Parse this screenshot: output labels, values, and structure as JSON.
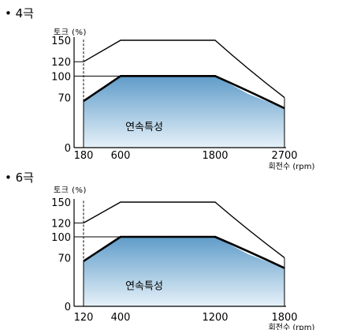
{
  "chart_data": [
    {
      "type": "area",
      "title": "• 4극",
      "ylabel": "토크 (%)",
      "xlabel": "회전수 (rpm)",
      "yticks": [
        0,
        70,
        100,
        120,
        150
      ],
      "xticks": [
        180,
        600,
        1800,
        2700
      ],
      "xlim": [
        0,
        2700
      ],
      "ylim": [
        0,
        150
      ],
      "region_label": "연속특성",
      "series": [
        {
          "name": "",
          "role": "peak",
          "points": [
            [
              180,
              120
            ],
            [
              600,
              150
            ],
            [
              1800,
              150
            ],
            [
              2250,
              100
            ],
            [
              2700,
              70
            ]
          ]
        },
        {
          "name": "",
          "role": "continuous",
          "points": [
            [
              180,
              65
            ],
            [
              600,
              100
            ],
            [
              1800,
              100
            ],
            [
              2250,
              75
            ],
            [
              2700,
              55
            ]
          ]
        }
      ]
    },
    {
      "type": "area",
      "title": "• 6극",
      "ylabel": "토크 (%)",
      "xlabel": "회전수 (rpm)",
      "yticks": [
        0,
        70,
        100,
        120,
        150
      ],
      "xticks": [
        120,
        400,
        1200,
        1800
      ],
      "xlim": [
        0,
        1800
      ],
      "ylim": [
        0,
        150
      ],
      "region_label": "연속특성",
      "series": [
        {
          "name": "",
          "role": "peak",
          "points": [
            [
              120,
              120
            ],
            [
              400,
              150
            ],
            [
              1200,
              150
            ],
            [
              1500,
              100
            ],
            [
              1800,
              70
            ]
          ]
        },
        {
          "name": "",
          "role": "continuous",
          "points": [
            [
              120,
              65
            ],
            [
              400,
              100
            ],
            [
              1200,
              100
            ],
            [
              1500,
              75
            ],
            [
              1800,
              55
            ]
          ]
        }
      ]
    }
  ],
  "colors": {
    "fill_top": "#5f9cc9",
    "fill_bottom": "#e6f1f9",
    "line": "#000000"
  }
}
